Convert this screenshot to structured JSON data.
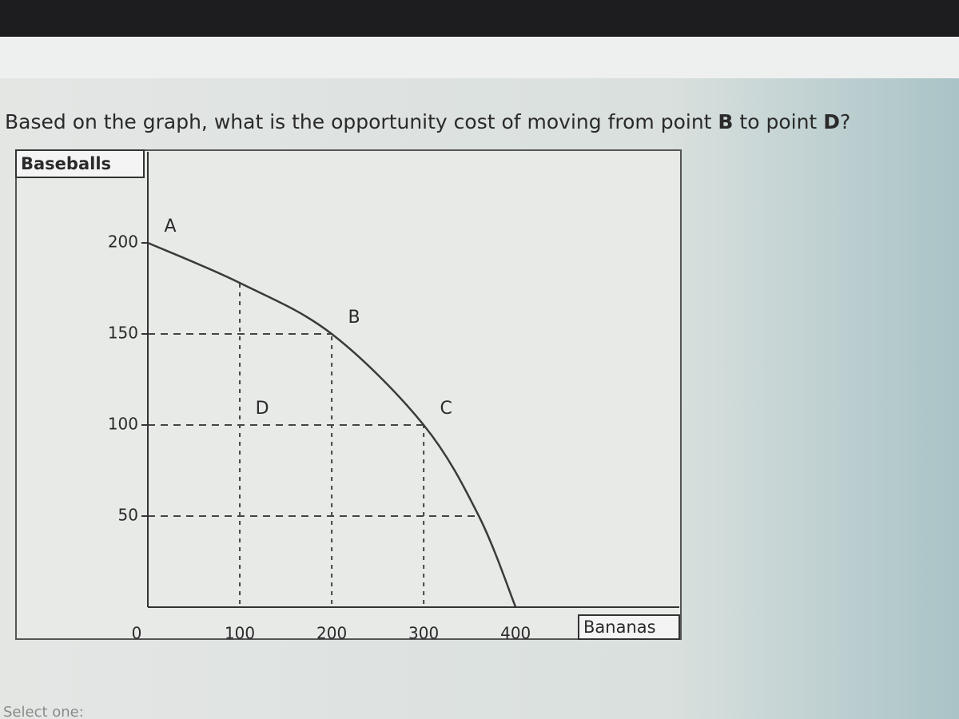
{
  "question": {
    "parts": [
      "Based on the graph, what is the opportunity cost of moving from point ",
      "B",
      " to point ",
      "D",
      "?"
    ]
  },
  "chart_data": {
    "type": "line",
    "y_label": "Baseballs",
    "x_label": "Bananas",
    "x": [
      0,
      100,
      200,
      300,
      360,
      400
    ],
    "values": [
      200,
      178,
      150,
      100,
      50,
      0
    ],
    "color": "#3a3a3a",
    "points": [
      {
        "label": "A",
        "x": 0,
        "y": 200
      },
      {
        "label": "B",
        "x": 200,
        "y": 150
      },
      {
        "label": "C",
        "x": 300,
        "y": 100
      },
      {
        "label": "D",
        "x": 100,
        "y": 100
      }
    ],
    "xlim": [
      0,
      578
    ],
    "ylim": [
      0,
      250
    ],
    "xticks": [
      0,
      100,
      200,
      300,
      400
    ],
    "yticks": [
      50,
      100,
      150,
      200
    ],
    "grid": true
  },
  "footer": {
    "text": "Select one:"
  }
}
